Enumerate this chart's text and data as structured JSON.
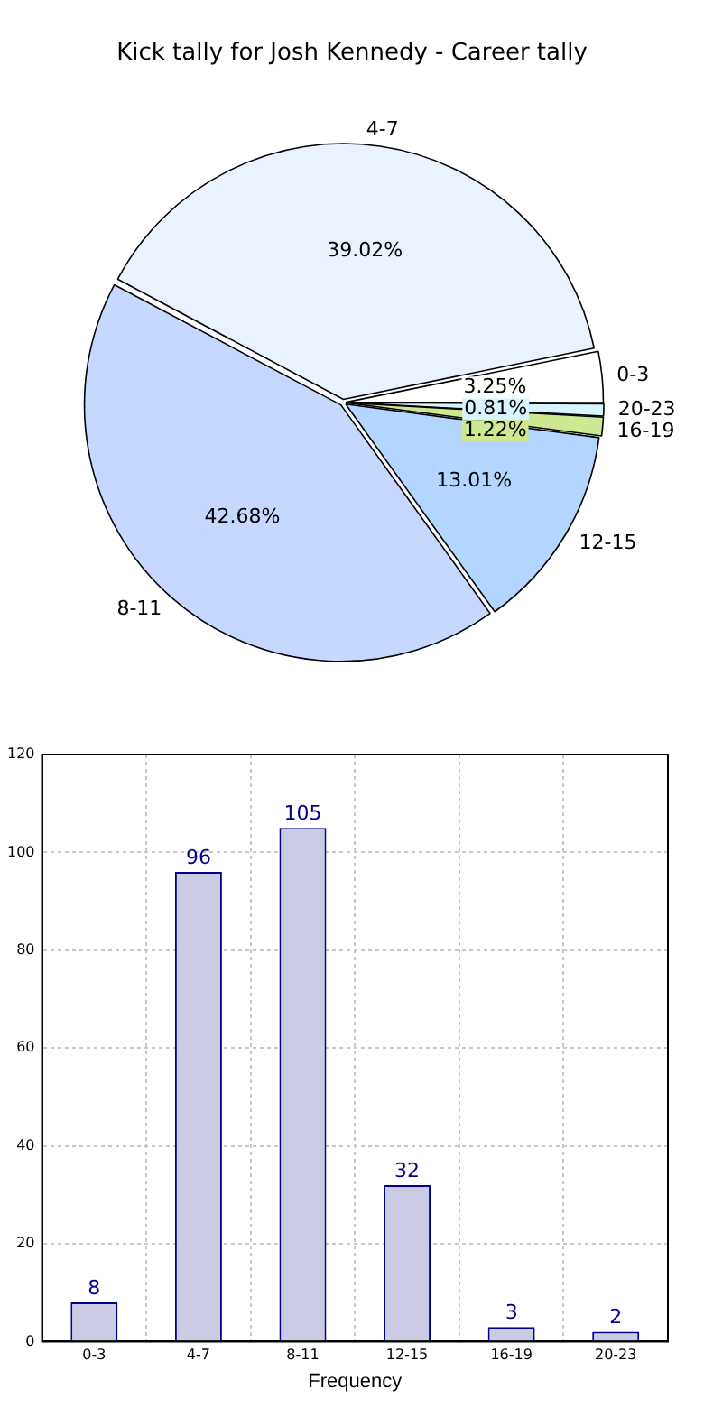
{
  "chart_data": [
    {
      "type": "pie",
      "title": "Kick tally for Josh Kennedy - Career tally",
      "categories": [
        "4-7",
        "0-3",
        "20-23",
        "16-19",
        "12-15",
        "8-11"
      ],
      "values": [
        39.02,
        3.25,
        0.81,
        1.22,
        13.01,
        42.68
      ],
      "value_labels": [
        "39.02%",
        "3.25%",
        "0.81%",
        "1.22%",
        "13.01%",
        "42.68%"
      ],
      "colors": [
        "#eaf1ff",
        "#ffffff",
        "#d8f4ff",
        "#cde890",
        "#b2d6ff",
        "#c6d8ff"
      ]
    },
    {
      "type": "bar",
      "xlabel": "Frequency",
      "categories": [
        "0-3",
        "4-7",
        "8-11",
        "12-15",
        "16-19",
        "20-23"
      ],
      "values": [
        8,
        96,
        105,
        32,
        3,
        2
      ],
      "color": "#cbcbe3",
      "ylim": [
        0,
        120
      ],
      "yticks": [
        0,
        20,
        40,
        60,
        80,
        100,
        120
      ],
      "grid": true,
      "data_labels": true
    }
  ]
}
